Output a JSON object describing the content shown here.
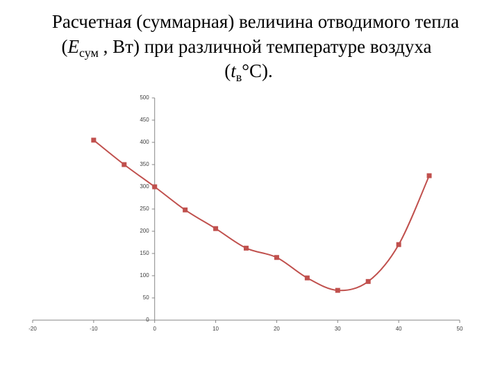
{
  "chart_data": {
    "type": "line",
    "title": {
      "line1": "Расчетная (суммарная)  величина отводимого тепла",
      "line2": {
        "open": "(",
        "symbol": "E",
        "subscript": "сум",
        "rest": " , Вт) при различной температуре воздуха"
      },
      "line3": {
        "open": "(",
        "symbol": "t",
        "subscript": "в",
        "rest": "°С)."
      }
    },
    "x": [
      -10,
      -5,
      0,
      5,
      10,
      15,
      20,
      25,
      30,
      35,
      40,
      45
    ],
    "series": [
      {
        "color": "#c0504d",
        "values": [
          405,
          350,
          300,
          248,
          206,
          162,
          141,
          95,
          67,
          87,
          170,
          325
        ]
      }
    ],
    "xlim": [
      -20,
      50
    ],
    "xticks": [
      -20,
      -10,
      0,
      10,
      20,
      30,
      40,
      50
    ],
    "ylim": [
      0,
      500
    ],
    "yticks": [
      0,
      50,
      100,
      150,
      200,
      250,
      300,
      350,
      400,
      450,
      500
    ],
    "smooth": true
  }
}
